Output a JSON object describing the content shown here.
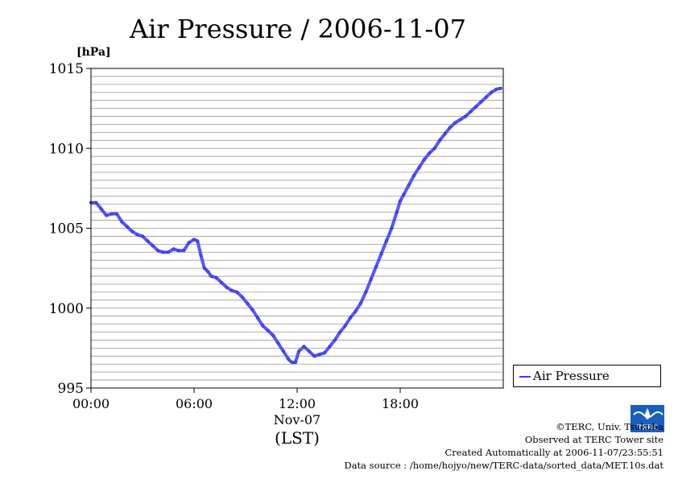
{
  "chart_data": {
    "type": "line",
    "title": "Air Pressure / 2006-11-07",
    "y_unit_label": "[hPa]",
    "x_tick_labels": [
      "00:00",
      "06:00",
      "12:00",
      "18:00"
    ],
    "x_date_label": "Nov-07",
    "x_axis_label": "(LST)",
    "y_tick_labels": [
      "1015",
      "1010",
      "1005",
      "1000",
      "995"
    ],
    "xlim_hours": [
      0,
      24
    ],
    "ylim": [
      995,
      1015
    ],
    "grid": "horizontal lines every 0.5 hPa",
    "legend_position": "right, outside plot, lower",
    "series": [
      {
        "name": "Air Pressure",
        "color": "#3a3aff",
        "x_hours": [
          0,
          0.3,
          0.6,
          0.9,
          1.2,
          1.5,
          1.8,
          2.1,
          2.4,
          2.7,
          3.0,
          3.3,
          3.6,
          3.9,
          4.2,
          4.5,
          4.8,
          5.1,
          5.4,
          5.7,
          6.0,
          6.2,
          6.4,
          6.6,
          6.8,
          7.0,
          7.3,
          7.6,
          7.9,
          8.2,
          8.5,
          8.8,
          9.1,
          9.4,
          9.7,
          10.0,
          10.3,
          10.6,
          10.9,
          11.2,
          11.5,
          11.7,
          11.9,
          12.1,
          12.4,
          12.7,
          13.0,
          13.3,
          13.6,
          13.9,
          14.2,
          14.5,
          14.8,
          15.1,
          15.4,
          15.7,
          16.0,
          16.3,
          16.6,
          16.9,
          17.2,
          17.5,
          17.8,
          18.0,
          18.2,
          18.5,
          18.8,
          19.1,
          19.4,
          19.7,
          20.0,
          20.3,
          20.6,
          20.9,
          21.2,
          21.5,
          21.8,
          22.1,
          22.4,
          22.7,
          23.0,
          23.3,
          23.6,
          23.85
        ],
        "values": [
          1006.6,
          1006.6,
          1006.2,
          1005.8,
          1005.9,
          1005.9,
          1005.4,
          1005.1,
          1004.8,
          1004.6,
          1004.5,
          1004.2,
          1003.9,
          1003.6,
          1003.5,
          1003.5,
          1003.7,
          1003.6,
          1003.6,
          1004.1,
          1004.3,
          1004.2,
          1003.3,
          1002.5,
          1002.3,
          1002.0,
          1001.9,
          1001.6,
          1001.3,
          1001.1,
          1001.0,
          1000.7,
          1000.3,
          999.9,
          999.4,
          998.9,
          998.6,
          998.3,
          997.8,
          997.3,
          996.8,
          996.6,
          996.6,
          997.3,
          997.6,
          997.3,
          997.0,
          997.1,
          997.2,
          997.6,
          998.0,
          998.5,
          998.9,
          999.4,
          999.8,
          1000.3,
          1001.0,
          1001.8,
          1002.6,
          1003.4,
          1004.2,
          1005.0,
          1006.0,
          1006.7,
          1007.1,
          1007.7,
          1008.3,
          1008.8,
          1009.3,
          1009.7,
          1010.0,
          1010.5,
          1010.9,
          1011.3,
          1011.6,
          1011.8,
          1012.0,
          1012.3,
          1012.6,
          1012.9,
          1013.2,
          1013.5,
          1013.7,
          1013.75
        ]
      }
    ]
  },
  "credits": {
    "copyright": "©TERC, Univ. Tsukuba",
    "observed": "Observed at TERC Tower site",
    "created": "Created Automatically at 2006-11-07/23:55:51",
    "source": "Data source : /home/hojyo/new/TERC-data/sorted_data/MET.10s.dat"
  },
  "logo": {
    "name": "terc-logo",
    "text": "TERC",
    "color": "#1a5fc0"
  }
}
